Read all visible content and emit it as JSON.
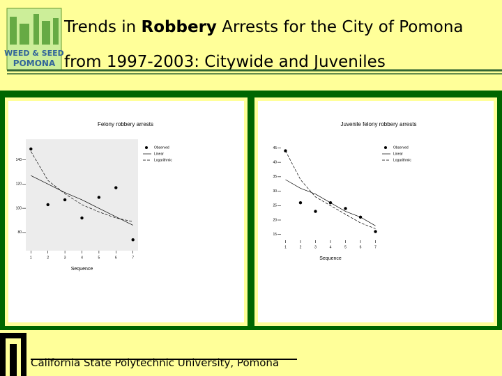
{
  "slide": {
    "title_parts": [
      "Trends in ",
      "Robbery",
      " Arrests for the City of Pomona"
    ],
    "title_line2": "from 1997-2003: Citywide and Juveniles",
    "logo_top": "WEED & SEED",
    "logo_bottom": "POMONA",
    "footer": "California State Polytechnic University, Pomona"
  },
  "chart_data": [
    {
      "type": "line",
      "title": "Felony robbery arrests",
      "x_label": "Sequence",
      "x": [
        1,
        2,
        3,
        4,
        5,
        6,
        7
      ],
      "xlim": [
        0.7,
        7.3
      ],
      "xticks": [
        1,
        2,
        3,
        4,
        5,
        6,
        7
      ],
      "ylim": [
        65,
        157
      ],
      "yticks": [
        80,
        100,
        120,
        140
      ],
      "legend": "upper right",
      "series": [
        {
          "name": "Observed",
          "color": "#000000",
          "mark": "point",
          "values": [
            149,
            103,
            107,
            92,
            109,
            117,
            74
          ]
        },
        {
          "name": "Linear",
          "color": "#000000",
          "mark": "solid",
          "values": [
            127,
            120,
            113,
            107,
            100,
            93,
            86
          ]
        },
        {
          "name": "Logarithmic",
          "color": "#000000",
          "mark": "dashed",
          "values": [
            147,
            123,
            112,
            103,
            97,
            92,
            89
          ]
        }
      ]
    },
    {
      "type": "line",
      "title": "Juvenile felony robbery arrests",
      "x_label": "Sequence",
      "x": [
        1,
        2,
        3,
        4,
        5,
        6,
        7
      ],
      "xlim": [
        0.7,
        7.3
      ],
      "xticks": [
        1,
        2,
        3,
        4,
        5,
        6,
        7
      ],
      "ylim": [
        13,
        48
      ],
      "yticks": [
        15,
        20,
        25,
        30,
        35,
        40,
        45
      ],
      "legend": "upper right",
      "series": [
        {
          "name": "Observed",
          "color": "#000000",
          "mark": "point",
          "values": [
            44,
            26,
            23,
            26,
            24,
            21,
            16
          ]
        },
        {
          "name": "Linear",
          "color": "#000000",
          "mark": "solid",
          "values": [
            34,
            31,
            29,
            26,
            23,
            21,
            18
          ]
        },
        {
          "name": "Logarithmic",
          "color": "#000000",
          "mark": "dashed",
          "values": [
            44,
            34,
            28,
            25,
            22,
            19,
            17
          ]
        }
      ]
    }
  ]
}
